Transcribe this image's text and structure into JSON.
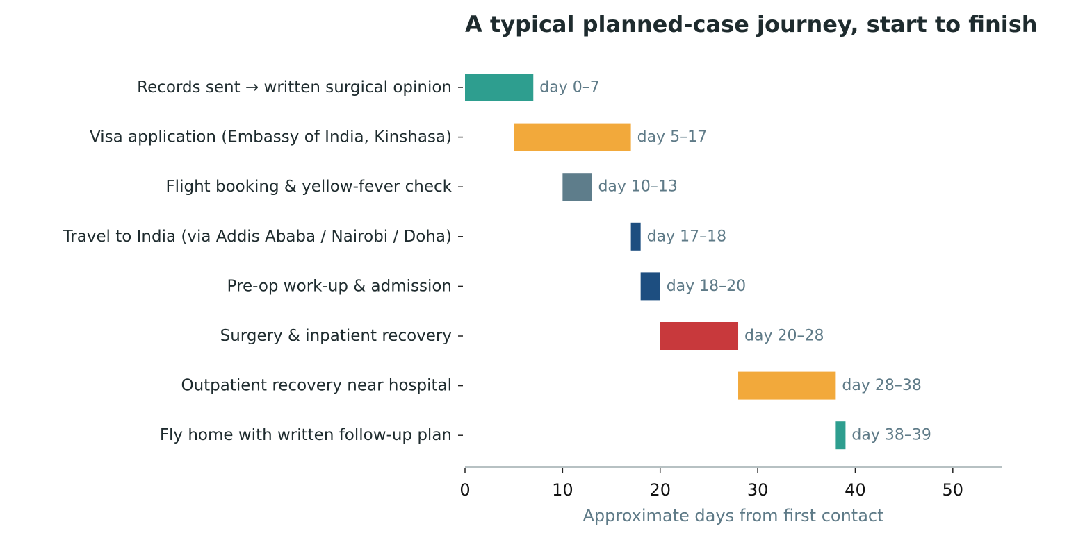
{
  "chart_data": {
    "type": "bar",
    "orientation": "horizontal",
    "title": "A typical planned-case journey, start to finish",
    "xlabel": "Approximate days from first contact",
    "ylabel": "",
    "xlim": [
      0,
      55
    ],
    "xticks": [
      0,
      10,
      20,
      30,
      40,
      50
    ],
    "grid": false,
    "tasks": [
      {
        "label": "Records sent → written surgical opinion",
        "start": 0,
        "end": 7,
        "bar_label": "day 0–7",
        "color": "#2e9e8f"
      },
      {
        "label": "Visa application (Embassy of India, Kinshasa)",
        "start": 5,
        "end": 17,
        "bar_label": "day 5–17",
        "color": "#f2a93b"
      },
      {
        "label": "Flight booking & yellow-fever check",
        "start": 10,
        "end": 13,
        "bar_label": "day 10–13",
        "color": "#5e7d8b"
      },
      {
        "label": "Travel to India (via Addis Ababa / Nairobi / Doha)",
        "start": 17,
        "end": 18,
        "bar_label": "day 17–18",
        "color": "#1d4e80"
      },
      {
        "label": "Pre-op work-up & admission",
        "start": 18,
        "end": 20,
        "bar_label": "day 18–20",
        "color": "#1d4e80"
      },
      {
        "label": "Surgery & inpatient recovery",
        "start": 20,
        "end": 28,
        "bar_label": "day 20–28",
        "color": "#c8393c"
      },
      {
        "label": "Outpatient recovery near hospital",
        "start": 28,
        "end": 38,
        "bar_label": "day 28–38",
        "color": "#f2a93b"
      },
      {
        "label": "Fly home with written follow-up plan",
        "start": 38,
        "end": 39,
        "bar_label": "day 38–39",
        "color": "#2e9e8f"
      }
    ]
  }
}
